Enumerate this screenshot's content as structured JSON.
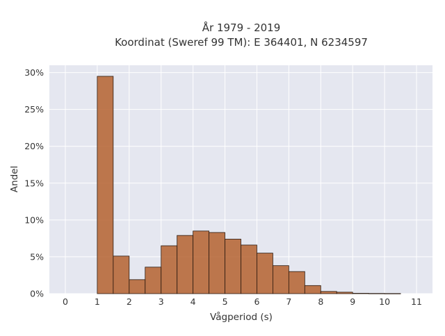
{
  "chart_data": {
    "type": "bar",
    "title_line1": "År 1979 - 2019",
    "title_line2": "Koordinat (Sweref 99 TM): E 364401, N 6234597",
    "xlabel": "Vågperiod (s)",
    "ylabel": "Andel",
    "xlim": [
      -0.5,
      11.5
    ],
    "ylim": [
      0,
      31
    ],
    "x_ticks": [
      0,
      1,
      2,
      3,
      4,
      5,
      6,
      7,
      8,
      9,
      10,
      11
    ],
    "x_tick_labels": [
      "0",
      "1",
      "2",
      "3",
      "4",
      "5",
      "6",
      "7",
      "8",
      "9",
      "10",
      "11"
    ],
    "y_ticks": [
      0,
      5,
      10,
      15,
      20,
      25,
      30
    ],
    "y_tick_labels": [
      "0%",
      "5%",
      "10%",
      "15%",
      "20%",
      "25%",
      "30%"
    ],
    "bin_width": 0.5,
    "bins": [
      {
        "start": 1.0,
        "value": 29.5
      },
      {
        "start": 1.5,
        "value": 5.1
      },
      {
        "start": 2.0,
        "value": 1.9
      },
      {
        "start": 2.5,
        "value": 3.6
      },
      {
        "start": 3.0,
        "value": 6.5
      },
      {
        "start": 3.5,
        "value": 7.9
      },
      {
        "start": 4.0,
        "value": 8.5
      },
      {
        "start": 4.5,
        "value": 8.3
      },
      {
        "start": 5.0,
        "value": 7.4
      },
      {
        "start": 5.5,
        "value": 6.6
      },
      {
        "start": 6.0,
        "value": 5.5
      },
      {
        "start": 6.5,
        "value": 3.8
      },
      {
        "start": 7.0,
        "value": 3.0
      },
      {
        "start": 7.5,
        "value": 1.1
      },
      {
        "start": 8.0,
        "value": 0.3
      },
      {
        "start": 8.5,
        "value": 0.2
      },
      {
        "start": 9.0,
        "value": 0.05
      },
      {
        "start": 9.5,
        "value": 0.03
      },
      {
        "start": 10.0,
        "value": 0.02
      }
    ],
    "grid": true,
    "colors": {
      "bar_fill": "#b5622f",
      "bar_stroke": "#2a1a10",
      "plot_background": "#e5e7f0",
      "grid": "#ffffff"
    }
  }
}
